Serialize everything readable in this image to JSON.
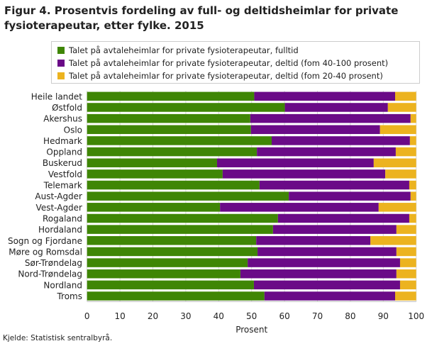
{
  "title": "Figur 4. Prosentvis fordeling av full- og deltidsheimlar for private fysioterapeutar, etter fylke. 2015",
  "source": "Kjelde: Statistisk sentralbyrå.",
  "chart_data": {
    "type": "bar",
    "orientation": "horizontal",
    "stacked": true,
    "title": "Figur 4. Prosentvis fordeling av full- og deltidsheimlar for private fysioterapeutar, etter fylke. 2015",
    "xlabel": "Prosent",
    "ylabel": "",
    "xlim": [
      0,
      100
    ],
    "xticks": [
      "0",
      "10",
      "20",
      "30",
      "40",
      "50",
      "60",
      "70",
      "80",
      "90",
      "100"
    ],
    "grid": true,
    "legend_position": "top",
    "categories": [
      "Heile landet",
      "Østfold",
      "Akershus",
      "Oslo",
      "Hedmark",
      "Oppland",
      "Buskerud",
      "Vestfold",
      "Telemark",
      "Aust-Agder",
      "Vest-Agder",
      "Rogaland",
      "Hordaland",
      "Sogn og Fjordane",
      "Møre og Romsdal",
      "Sør-Trøndelag",
      "Nord-Trøndelag",
      "Nordland",
      "Troms"
    ],
    "series": [
      {
        "name": "Talet på avtaleheimlar for private fysioterapeutar, fulltid",
        "color": "#3f8605",
        "values": [
          50.8,
          60.1,
          49.6,
          49.8,
          56.1,
          51.6,
          39.5,
          41.2,
          52.4,
          61.3,
          40.4,
          58.0,
          56.5,
          51.4,
          51.8,
          48.8,
          46.6,
          50.7,
          53.9
        ]
      },
      {
        "name": "Talet på avtaleheimlar for private fysioterapeutar, deltid (fom 40-100 prosent)",
        "color": "#6a0a87",
        "values": [
          42.8,
          31.3,
          48.7,
          39.2,
          42.0,
          42.2,
          47.6,
          49.4,
          45.5,
          37.0,
          48.2,
          39.9,
          37.5,
          34.7,
          42.2,
          46.3,
          47.4,
          44.4,
          39.7
        ]
      },
      {
        "name": "Talet på avtaleheimlar for private fysioterapeutar, deltid (fom 20-40 prosent)",
        "color": "#ecb31f",
        "values": [
          6.4,
          8.6,
          1.7,
          11.0,
          1.9,
          6.2,
          12.9,
          9.4,
          2.1,
          1.7,
          11.4,
          2.1,
          6.0,
          13.9,
          6.0,
          4.9,
          6.0,
          4.9,
          6.4
        ]
      }
    ]
  }
}
